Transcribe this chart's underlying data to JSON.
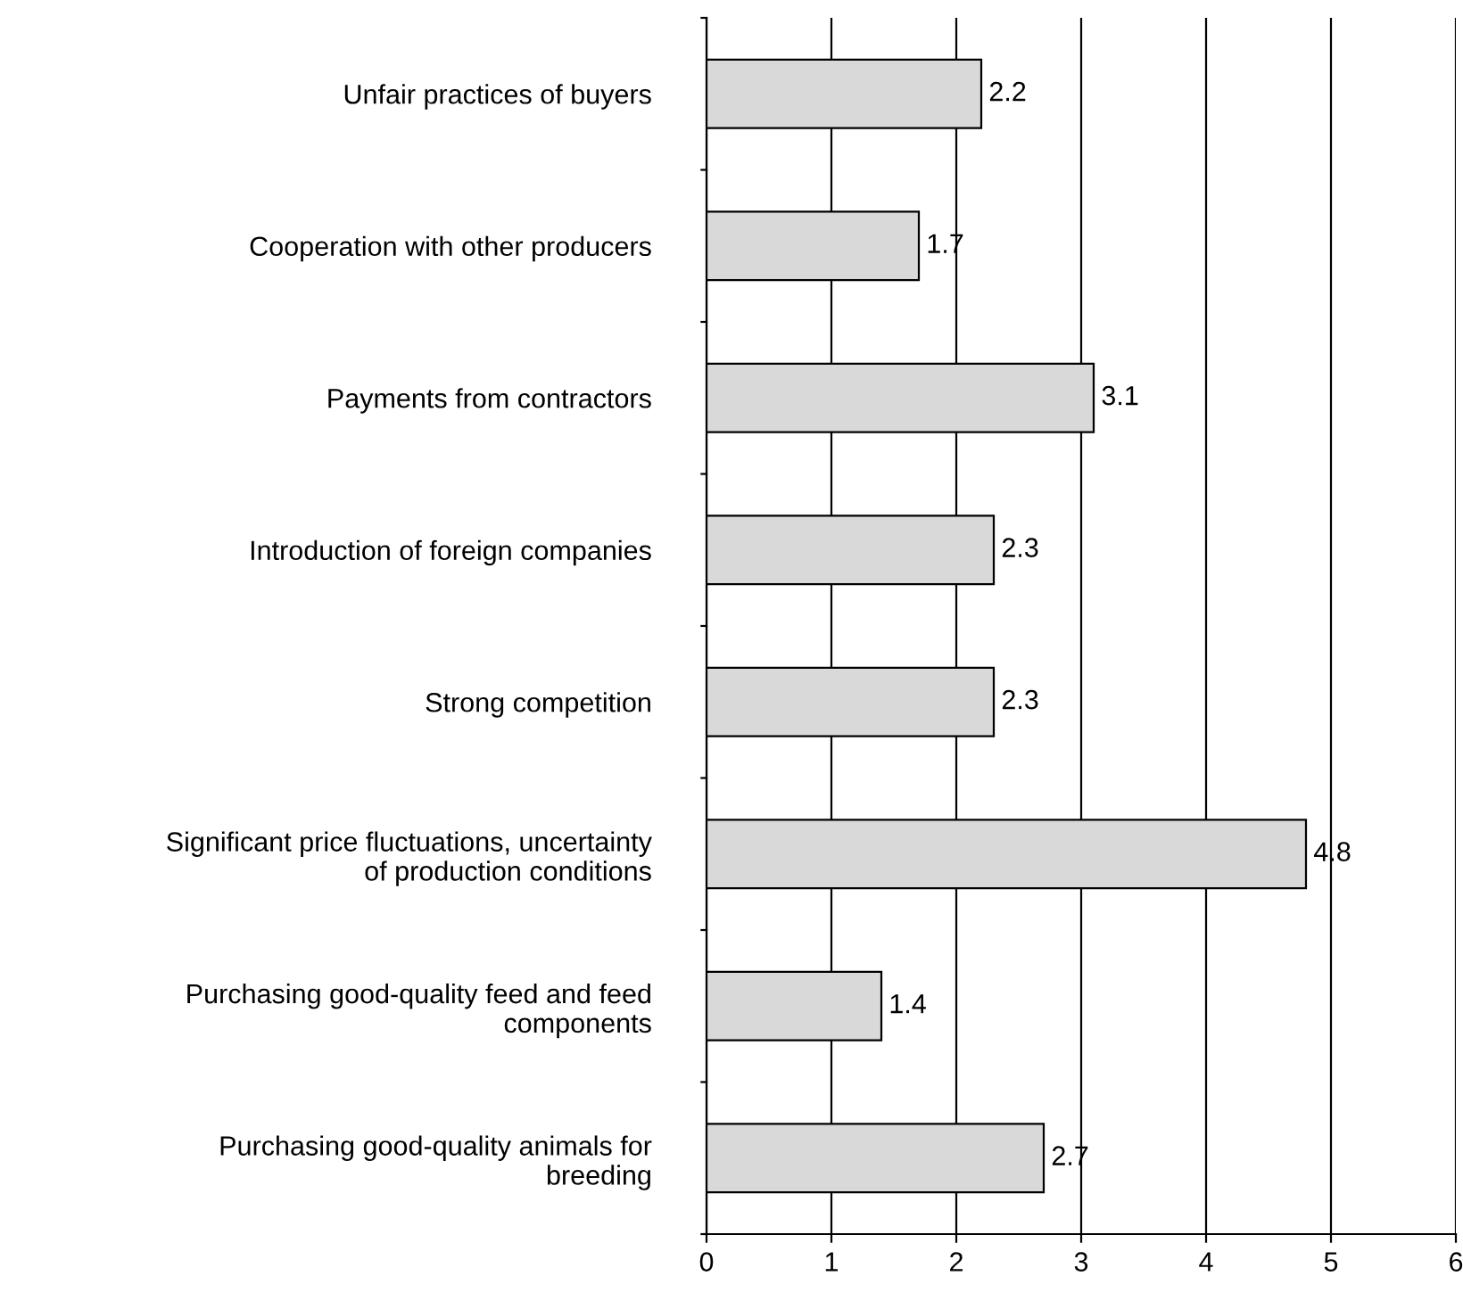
{
  "chart_data": {
    "type": "bar",
    "orientation": "horizontal",
    "categories": [
      "Unfair practices of buyers",
      "Cooperation with other producers",
      "Payments from contractors",
      "Introduction of foreign companies",
      "Strong competition",
      "Significant price fluctuations, uncertainty\nof production conditions",
      "Purchasing good-quality feed and feed\ncomponents",
      "Purchasing good-quality animals for\nbreeding"
    ],
    "values": [
      2.2,
      1.7,
      3.1,
      2.3,
      2.3,
      4.8,
      1.4,
      2.7
    ],
    "color": "#d9d9d9",
    "xlim": [
      0,
      6
    ],
    "xticks": [
      0,
      1,
      2,
      3,
      4,
      5,
      6
    ],
    "grid": "x",
    "data_labels": true
  }
}
